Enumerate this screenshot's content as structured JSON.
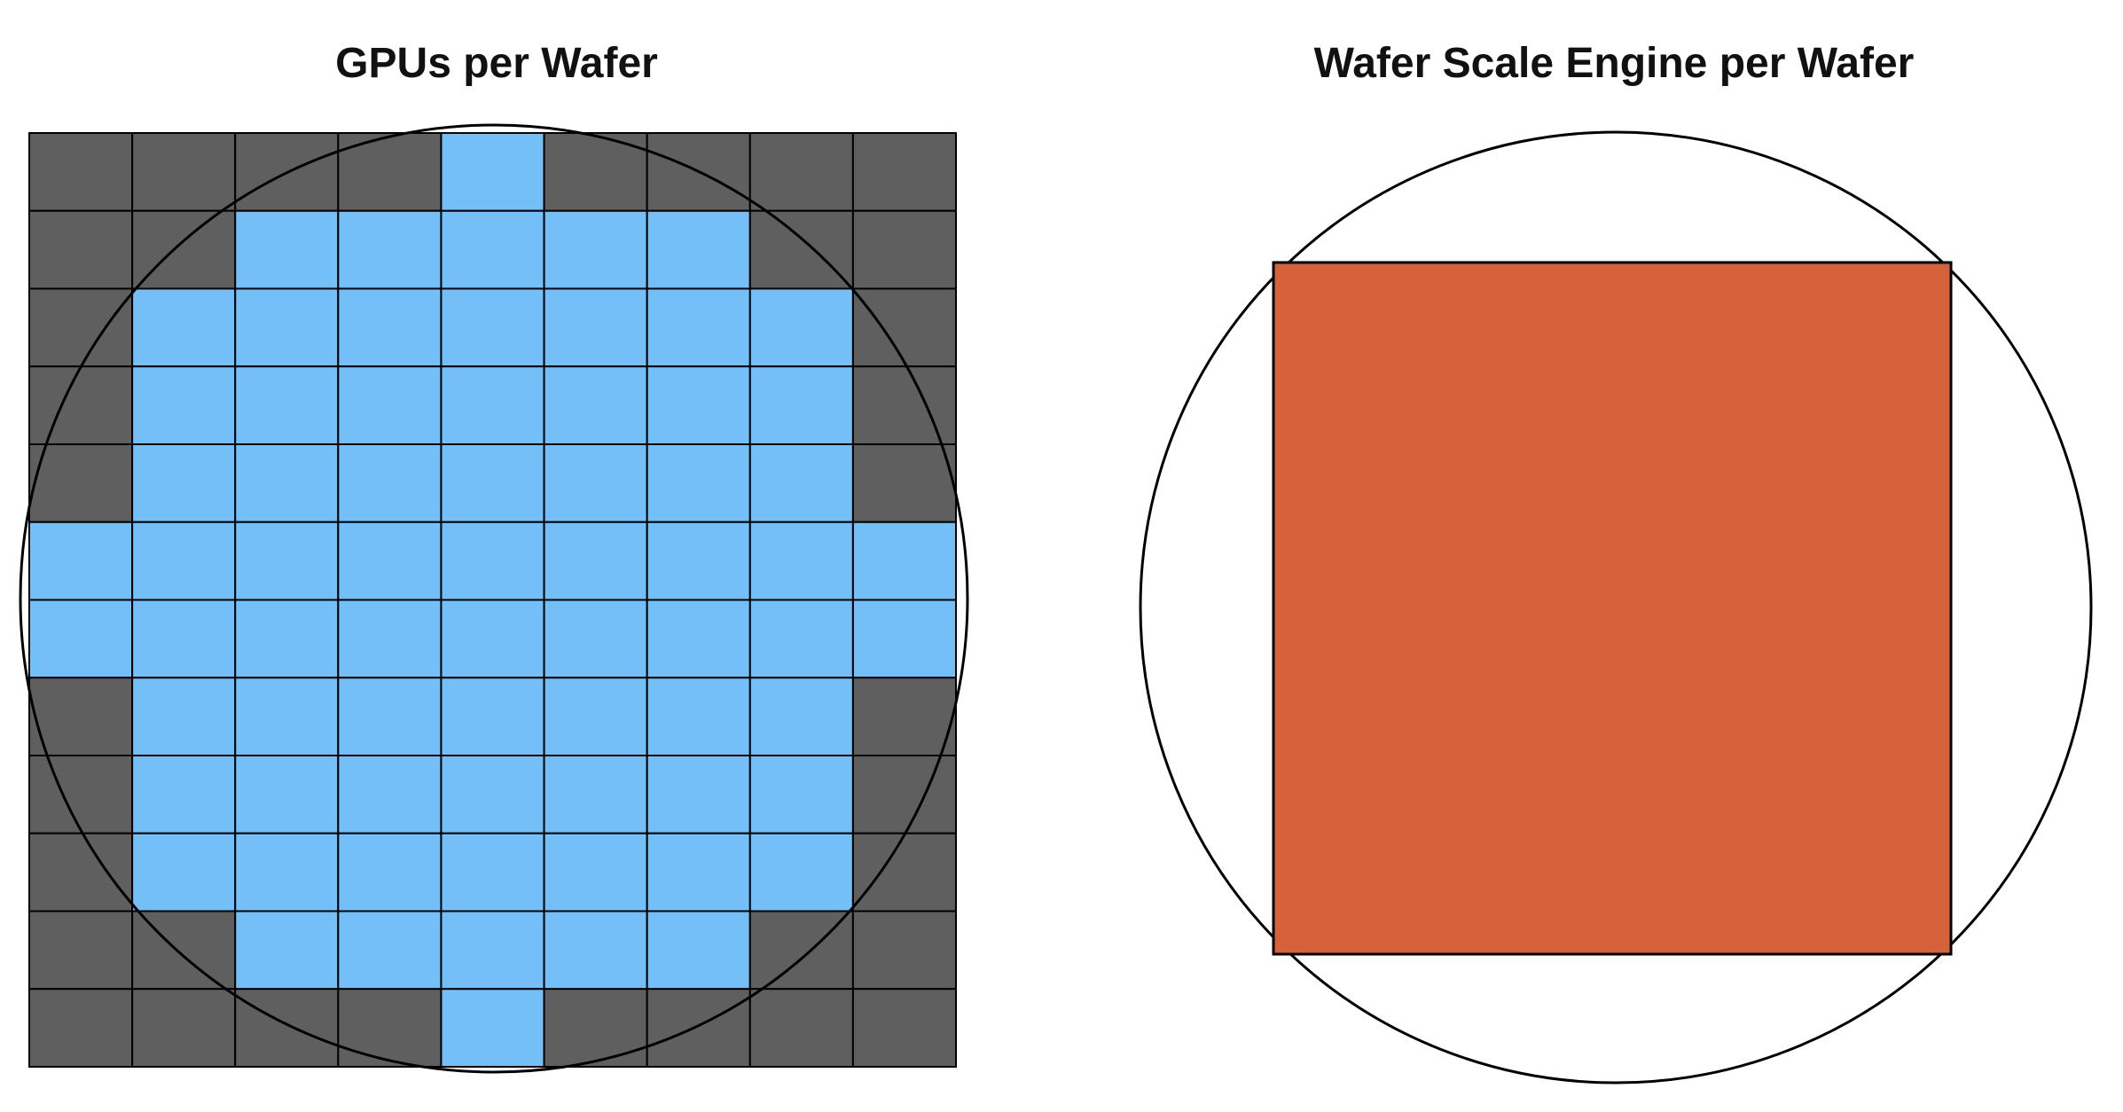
{
  "panels": {
    "gpus": {
      "title": "GPUs per Wafer",
      "grid": {
        "rows": 12,
        "cols": 9,
        "row_spans": [
          [
            4,
            4
          ],
          [
            2,
            6
          ],
          [
            1,
            7
          ],
          [
            1,
            7
          ],
          [
            1,
            7
          ],
          [
            0,
            8
          ],
          [
            0,
            8
          ],
          [
            1,
            7
          ],
          [
            1,
            7
          ],
          [
            1,
            7
          ],
          [
            2,
            6
          ],
          [
            4,
            4
          ]
        ]
      }
    },
    "wse": {
      "title": "Wafer Scale Engine per Wafer"
    }
  },
  "colors": {
    "gpu_die": "#74bff8",
    "unused_die": "#5f5f5f",
    "wafer_scale_engine": "#d6623b",
    "outline": "#000000",
    "background": "#ffffff"
  }
}
